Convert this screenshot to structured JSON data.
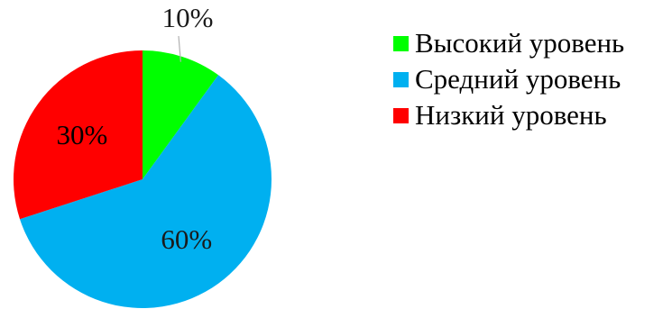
{
  "chart_data": {
    "type": "pie",
    "title": "",
    "legend_position": "right",
    "slices": [
      {
        "name": "Высокий уровень",
        "value": 10,
        "label": "10%",
        "color": "#00ff00"
      },
      {
        "name": "Средний уровень",
        "value": 60,
        "label": "60%",
        "color": "#00b0f0"
      },
      {
        "name": "Низкий уровень",
        "value": 30,
        "label": "30%",
        "color": "#ff0000"
      }
    ]
  }
}
